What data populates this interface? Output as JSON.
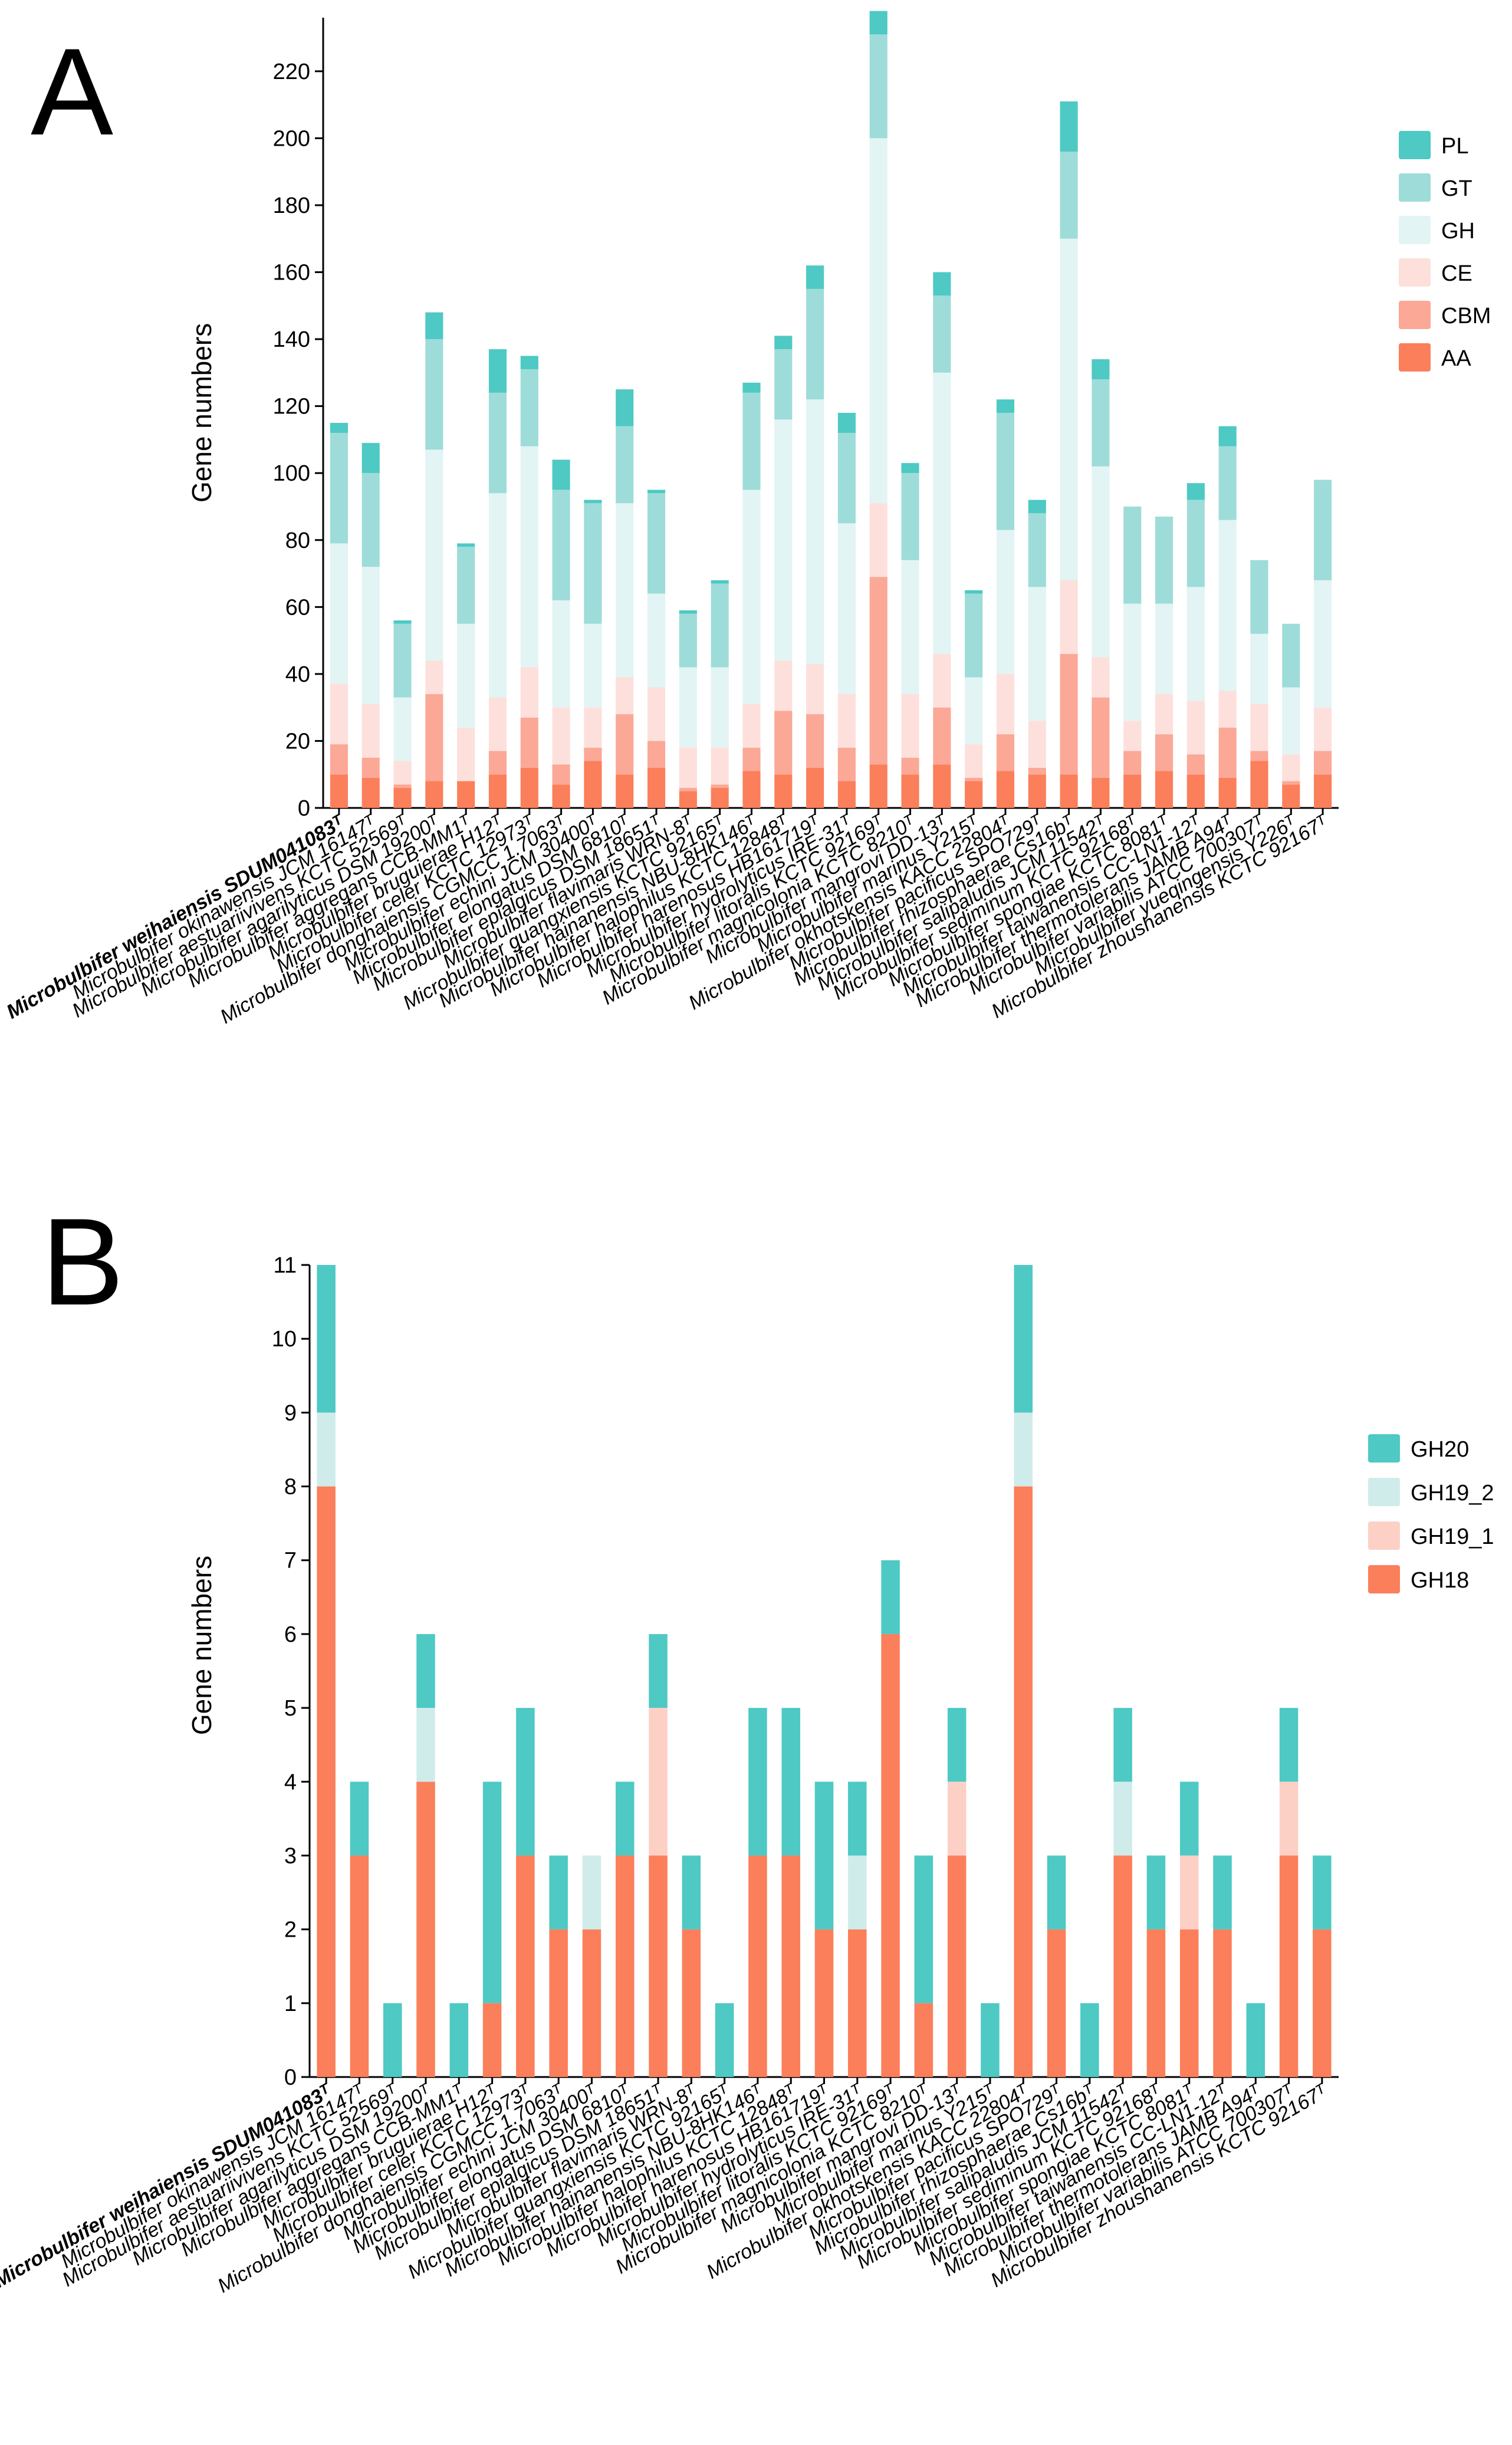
{
  "panels": [
    {
      "letter": "A"
    },
    {
      "letter": "B"
    }
  ],
  "chart_data": [
    {
      "type": "bar",
      "stacked": true,
      "title": "",
      "xlabel": "",
      "ylabel": "Gene numbers",
      "ylim": [
        0,
        236
      ],
      "yticks": [
        0,
        20,
        40,
        60,
        80,
        100,
        120,
        140,
        160,
        180,
        200,
        220
      ],
      "grid": false,
      "legend_position": "top-right",
      "categories": [
        "Microbulbifer weihaiensis SDUM041083ᵀ",
        "Microbulbifer okinawensis JCM 16147ᵀ",
        "Microbulbifer aestuariivivens KCTC 52569ᵀ",
        "Microbulbifer agarilyticus DSM 19200ᵀ",
        "Microbulbifer aggregans CCB-MM1ᵀ",
        "Microbulbifer bruguierae H12ᵀ",
        "Microbulbifer celer KCTC 12973ᵀ",
        "Microbulbifer donghaiensis CGMCC 1.7063ᵀ",
        "Microbulbifer echini JCM 30400ᵀ",
        "Microbulbifer elongatus DSM 6810ᵀ",
        "Microbulbifer epialgicus DSM 18651ᵀ",
        "Microbulbifer flavimaris WRN-8ᵀ",
        "Microbulbifer guangxiensis KCTC 92165ᵀ",
        "Microbulbifer hainanensis NBU-8HK146ᵀ",
        "Microbulbifer halophilus KCTC 12848ᵀ",
        "Microbulbifer harenosus HB161719ᵀ",
        "Microbulbifer hydrolyticus IRE-31ᵀ",
        "Microbulbifer litoralis KCTC 92169ᵀ",
        "Microbulbifer magnicolonia KCTC 8210ᵀ",
        "Microbulbifer mangrovi DD-13ᵀ",
        "Microbulbifer marinus Y215ᵀ",
        "Microbulbifer okhotskensis KACC 22804ᵀ",
        "Microbulbifer pacificus SPO729ᵀ",
        "Microbulbifer rhizosphaerae Cs16bᵀ",
        "Microbulbifer salipaludis JCM 11542ᵀ",
        "Microbulbifer sediminum KCTC 92168ᵀ",
        "Microbulbifer spongiae KCTC 8081ᵀ",
        "Microbulbifer taiwanensis CC-LN1-12ᵀ",
        "Microbulbifer thermotolerans JAMB A94ᵀ",
        "Microbulbifer variabilis ATCC 700307ᵀ",
        "Microbulbifer yueqingensis Y226ᵀ",
        "Microbulbifer zhoushanensis KCTC 92167ᵀ"
      ],
      "series": [
        {
          "name": "AA",
          "color": "#fb7f5a",
          "values": [
            10,
            9,
            6,
            8,
            8,
            10,
            12,
            7,
            14,
            10,
            12,
            5,
            6,
            11,
            10,
            12,
            8,
            13,
            10,
            13,
            8,
            11,
            10,
            10,
            9,
            10,
            11,
            10,
            9,
            14,
            7,
            10
          ]
        },
        {
          "name": "CBM",
          "color": "#fba897",
          "values": [
            9,
            6,
            1,
            26,
            0,
            7,
            15,
            6,
            4,
            18,
            8,
            1,
            1,
            7,
            19,
            16,
            10,
            56,
            5,
            17,
            1,
            11,
            2,
            36,
            24,
            7,
            11,
            6,
            15,
            3,
            1,
            7
          ]
        },
        {
          "name": "CE",
          "color": "#fde0db",
          "values": [
            18,
            16,
            7,
            10,
            16,
            16,
            15,
            17,
            12,
            11,
            16,
            12,
            11,
            13,
            15,
            15,
            16,
            22,
            19,
            16,
            10,
            18,
            14,
            22,
            12,
            9,
            12,
            16,
            11,
            14,
            8,
            13
          ]
        },
        {
          "name": "GH",
          "color": "#e2f4f4",
          "values": [
            42,
            41,
            19,
            63,
            31,
            61,
            66,
            32,
            25,
            52,
            28,
            24,
            24,
            64,
            72,
            79,
            51,
            109,
            40,
            84,
            20,
            43,
            40,
            102,
            57,
            35,
            27,
            34,
            51,
            21,
            20,
            38
          ]
        },
        {
          "name": "GT",
          "color": "#9edcd9",
          "values": [
            33,
            28,
            22,
            33,
            23,
            30,
            23,
            33,
            36,
            23,
            30,
            16,
            25,
            29,
            21,
            33,
            27,
            31,
            26,
            23,
            25,
            35,
            22,
            26,
            26,
            29,
            26,
            26,
            22,
            22,
            19,
            30
          ]
        },
        {
          "name": "PL",
          "color": "#4ec9c4",
          "values": [
            3,
            9,
            1,
            8,
            1,
            13,
            4,
            9,
            1,
            11,
            1,
            1,
            1,
            3,
            4,
            7,
            6,
            7,
            3,
            7,
            1,
            4,
            4,
            15,
            6,
            0,
            0,
            5,
            6,
            0,
            0,
            0
          ]
        }
      ]
    },
    {
      "type": "bar",
      "stacked": true,
      "title": "",
      "xlabel": "",
      "ylabel": "Gene numbers",
      "ylim": [
        0,
        11
      ],
      "yticks": [
        0,
        1,
        2,
        3,
        4,
        5,
        6,
        7,
        8,
        9,
        10,
        11
      ],
      "grid": false,
      "legend_position": "right",
      "categories": [
        "Microbulbifer weihaiensis SDUM041083ᵀ",
        "Microbulbifer okinawensis JCM 16147ᵀ",
        "Microbulbifer aestuariivivens KCTC 52569ᵀ",
        "Microbulbifer agarilyticus DSM 19200ᵀ",
        "Microbulbifer aggregans CCB-MM1ᵀ",
        "Microbulbifer bruguierae H12ᵀ",
        "Microbulbifer celer KCTC 12973ᵀ",
        "Microbulbifer donghaiensis CGMCC 1.7063ᵀ",
        "Microbulbifer echini JCM 30400ᵀ",
        "Microbulbifer elongatus DSM 6810ᵀ",
        "Microbulbifer epialgicus DSM 18651ᵀ",
        "Microbulbifer flavimaris WRN-8ᵀ",
        "Microbulbifer guangxiensis KCTC 92165ᵀ",
        "Microbulbifer hainanensis NBU-8HK146ᵀ",
        "Microbulbifer halophilus KCTC 12848ᵀ",
        "Microbulbifer harenosus HB161719ᵀ",
        "Microbulbifer hydrolyticus IRE-31ᵀ",
        "Microbulbifer litoralis KCTC 92169ᵀ",
        "Microbulbifer magnicolonia KCTC 8210ᵀ",
        "Microbulbifer mangrovi DD-13ᵀ",
        "Microbulbifer marinus Y215ᵀ",
        "Microbulbifer okhotskensis KACC 22804ᵀ",
        "Microbulbifer pacificus SPO729ᵀ",
        "Microbulbifer rhizosphaerae Cs16bᵀ",
        "Microbulbifer salipaludis JCM 11542ᵀ",
        "Microbulbifer sediminum KCTC 92168ᵀ",
        "Microbulbifer spongiae KCTC 8081ᵀ",
        "Microbulbifer taiwanensis CC-LN1-12ᵀ",
        "Microbulbifer thermotolerans JAMB A94ᵀ",
        "Microbulbifer variabilis ATCC 700307ᵀ",
        "Microbulbifer zhoushanensis KCTC 92167ᵀ"
      ],
      "series": [
        {
          "name": "GH18",
          "color": "#fb7f5a",
          "values": [
            8,
            3,
            0,
            4,
            0,
            1,
            3,
            2,
            2,
            3,
            3,
            2,
            0,
            3,
            3,
            2,
            2,
            6,
            1,
            3,
            0,
            8,
            2,
            0,
            3,
            2,
            2,
            2,
            0,
            3,
            2
          ]
        },
        {
          "name": "GH19_1",
          "color": "#fdd0c6",
          "values": [
            0,
            0,
            0,
            0,
            0,
            0,
            0,
            0,
            0,
            0,
            2,
            0,
            0,
            0,
            0,
            0,
            0,
            0,
            0,
            1,
            0,
            0,
            0,
            0,
            0,
            0,
            1,
            0,
            0,
            1,
            0
          ]
        },
        {
          "name": "GH19_2",
          "color": "#cfecea",
          "values": [
            1,
            0,
            0,
            1,
            0,
            0,
            0,
            0,
            1,
            0,
            0,
            0,
            0,
            0,
            0,
            0,
            1,
            0,
            0,
            0,
            0,
            1,
            0,
            0,
            1,
            0,
            0,
            0,
            0,
            0,
            0
          ]
        },
        {
          "name": "GH20",
          "color": "#4ec9c4",
          "values": [
            2,
            1,
            1,
            1,
            1,
            3,
            2,
            1,
            0,
            1,
            1,
            1,
            1,
            2,
            2,
            2,
            1,
            1,
            2,
            1,
            1,
            2,
            1,
            1,
            1,
            1,
            1,
            1,
            1,
            1,
            1
          ]
        }
      ]
    }
  ]
}
